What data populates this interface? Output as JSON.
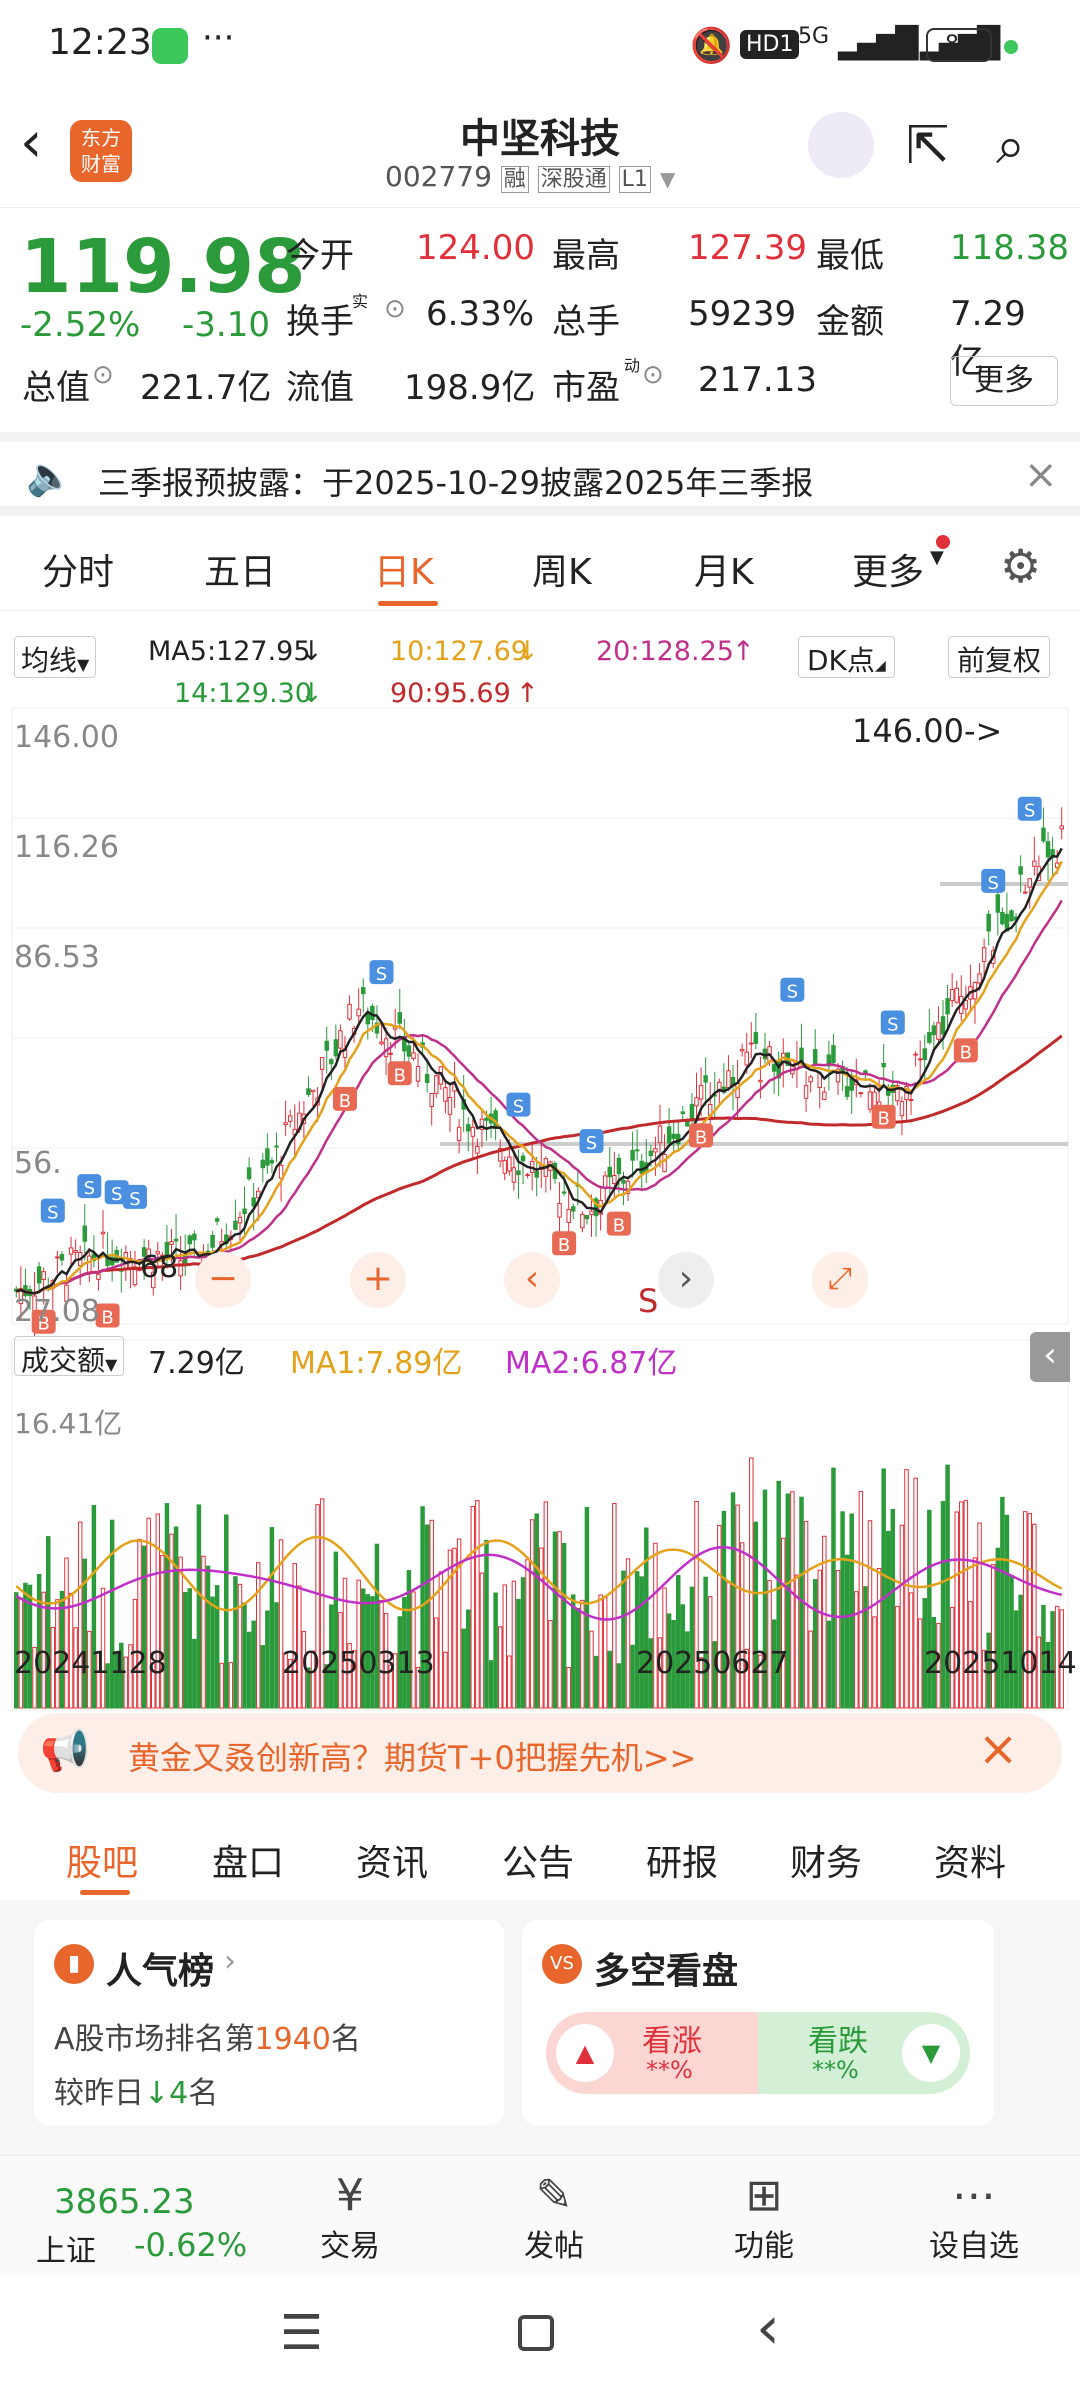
{
  "status": {
    "time": "12:23",
    "network": "HD1",
    "signal": "5G",
    "battery": "89"
  },
  "header": {
    "logo_line1": "东方",
    "logo_line2": "财富",
    "title": "中坚科技",
    "code": "002779",
    "tags": [
      "融",
      "深股通",
      "L1"
    ]
  },
  "quote": {
    "price": "119.98",
    "pct": "-2.52%",
    "chg": "-3.10",
    "rows": [
      [
        {
          "k": "今开",
          "v": "124.00",
          "c": "red"
        },
        {
          "k": "最高",
          "v": "127.39",
          "c": "red"
        },
        {
          "k": "最低",
          "v": "118.38",
          "c": "green"
        }
      ],
      [
        {
          "k": "换手",
          "v": "6.33%"
        },
        {
          "k": "总手",
          "v": "59239"
        },
        {
          "k": "金额",
          "v": "7.29亿"
        }
      ]
    ],
    "row3": [
      {
        "k": "总值",
        "v": "221.7亿"
      },
      {
        "k": "流值",
        "v": "198.9亿"
      },
      {
        "k": "市盈",
        "v": "217.13"
      }
    ],
    "turnover_sup": "实",
    "pe_sup": "动",
    "more": "更多"
  },
  "notice": {
    "text": "三季报预披露：于2025-10-29披露2025年三季报"
  },
  "tabs": [
    "分时",
    "五日",
    "日K",
    "周K",
    "月K",
    "更多"
  ],
  "ma": {
    "selector": "均线",
    "ma5": "MA5:127.95",
    "ma10": "10:127.69",
    "ma20": "20:128.25",
    "ma14": "14:129.30",
    "ma90": "90:95.69",
    "dk": "DK点",
    "adj": "前复权"
  },
  "chart": {
    "y_labels": [
      "146.00",
      "116.26",
      "86.53",
      "56.",
      "27.08"
    ],
    "max_label": "146.00->",
    "low_fragment": "68",
    "s_marker": "S",
    "vol_title": "成交额",
    "vol_value": "7.29亿",
    "vma1": "MA1:7.89亿",
    "vma2": "MA2:6.87亿",
    "vol_max": "16.41亿",
    "dates": [
      "20241128",
      "20250313",
      "20250627",
      "20251014"
    ]
  },
  "chart_data": {
    "type": "candlestick",
    "y_range": [
      27.08,
      146.0
    ],
    "latest_close": 119.98,
    "high_marker": 146.0,
    "volume_max": 16.41,
    "dates": [
      "20241128",
      "20250313",
      "20250627",
      "20251014"
    ]
  },
  "ad": {
    "text": "黄金又叒创新高？期货T+0把握先机>>"
  },
  "subtabs": [
    "股吧",
    "盘口",
    "资讯",
    "公告",
    "研报",
    "财务",
    "资料"
  ],
  "card1": {
    "title": "人气榜",
    "line1a": "A股市场排名第",
    "rank": "1940",
    "line1b": "名",
    "line2a": "较昨日",
    "delta": "4",
    "line2b": "名"
  },
  "card2": {
    "title": "多空看盘",
    "up": "看涨",
    "down": "看跌",
    "up_val": "**%",
    "down_val": "**%"
  },
  "bottom": {
    "index_value": "3865.23",
    "index_name": "上证",
    "index_pct": "-0.62%",
    "items": [
      "交易",
      "发帖",
      "功能",
      "设自选"
    ]
  },
  "colors": {
    "up": "#e0303a",
    "down": "#2a9a3a",
    "accent": "#e8662b"
  }
}
